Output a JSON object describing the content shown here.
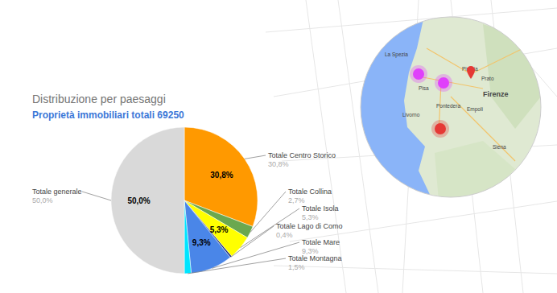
{
  "chart_data": {
    "type": "pie",
    "title": "Distribuzione per paesaggi",
    "subtitle": "Proprietà immobiliari totali 69250",
    "categories": [
      "Totale Centro Storico",
      "Totale Collina",
      "Totale Isola",
      "Totale Lago di Como",
      "Totale Mare",
      "Totale Montagna",
      "Totale generale"
    ],
    "values": [
      30.8,
      2.7,
      5.3,
      0.4,
      9.3,
      1.5,
      50.0
    ],
    "value_labels": [
      "30,8%",
      "2,7%",
      "5,3%",
      "0,4%",
      "9,3%",
      "1,5%",
      "50,0%"
    ],
    "colors": [
      "#ff9900",
      "#6aa84f",
      "#ffff00",
      "#1c2c7a",
      "#4a86e8",
      "#00e5ff",
      "#d9d9d9"
    ],
    "data_labels": true
  },
  "map": {
    "labels": [
      {
        "text": "La Spezia"
      },
      {
        "text": "Pistoia"
      },
      {
        "text": "Prato"
      },
      {
        "text": "Firenze"
      },
      {
        "text": "Pisa"
      },
      {
        "text": "Pontedera"
      },
      {
        "text": "Empoli"
      },
      {
        "text": "Livorno"
      },
      {
        "text": "Siena"
      }
    ]
  }
}
